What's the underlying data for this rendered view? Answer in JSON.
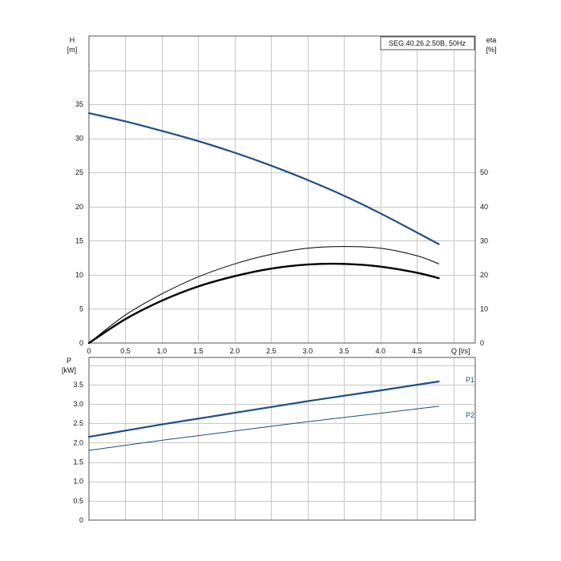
{
  "colors": {
    "head": "#1f4e86",
    "efficiency": "#000000",
    "p1": "#1f4e86",
    "p2": "#1f4e86",
    "grid": "#c8c8c8",
    "frame": "#555555"
  },
  "chart_data": [
    {
      "type": "line",
      "title": "SEG.40.26.2.50B, 50Hz",
      "xlabel": "Q [l/s]",
      "ylabel_line1": "H",
      "ylabel_line2": "[m]",
      "y2label_line1": "eta",
      "y2label_line2": "[%]",
      "xlim": [
        0,
        5.3
      ],
      "ylim": [
        0,
        45
      ],
      "y2lim": [
        0,
        90
      ],
      "grid": true,
      "x_ticks": [
        "0",
        "0.5",
        "1.0",
        "1.5",
        "2.0",
        "2.5",
        "3.0",
        "3.5",
        "4.0",
        "4.5"
      ],
      "x_tick_values": [
        0,
        0.5,
        1.0,
        1.5,
        2.0,
        2.5,
        3.0,
        3.5,
        4.0,
        4.5
      ],
      "y_ticks": [
        "0",
        "5",
        "10",
        "15",
        "20",
        "25",
        "30",
        "35"
      ],
      "y_tick_values": [
        0,
        5,
        10,
        15,
        20,
        25,
        30,
        35
      ],
      "y2_ticks": [
        "0",
        "10",
        "20",
        "30",
        "40",
        "50"
      ],
      "y2_tick_values": [
        0,
        10,
        20,
        30,
        40,
        50
      ],
      "series": [
        {
          "key": "head",
          "axis": "left",
          "x": [
            0,
            0.5,
            1.0,
            1.5,
            2.0,
            2.5,
            3.0,
            3.5,
            4.0,
            4.5,
            4.8
          ],
          "values": [
            33.7,
            32.5,
            31.1,
            29.6,
            27.9,
            26.0,
            23.9,
            21.6,
            19.0,
            16.2,
            14.5
          ]
        },
        {
          "key": "eta_thin",
          "axis": "right",
          "x": [
            0,
            0.5,
            1.0,
            1.5,
            2.0,
            2.5,
            3.0,
            3.5,
            4.0,
            4.5,
            4.8
          ],
          "values": [
            0,
            8.2,
            14.4,
            19.4,
            23.2,
            26.0,
            27.8,
            28.3,
            27.8,
            25.6,
            23.2
          ]
        },
        {
          "key": "eta_thick",
          "axis": "right",
          "x": [
            0,
            0.5,
            1.0,
            1.5,
            2.0,
            2.5,
            3.0,
            3.5,
            4.0,
            4.5,
            4.8
          ],
          "values": [
            0,
            7.0,
            12.4,
            16.6,
            19.6,
            21.8,
            23.0,
            23.2,
            22.4,
            20.6,
            19.0
          ]
        }
      ]
    },
    {
      "type": "line",
      "ylabel_line1": "P",
      "ylabel_line2": "[kW]",
      "xlim": [
        0,
        5.3
      ],
      "ylim": [
        0,
        4.2
      ],
      "grid": true,
      "y_ticks": [
        "0",
        "0.5",
        "1.0",
        "1.5",
        "2.0",
        "2.5",
        "3.0",
        "3.5"
      ],
      "y_tick_values": [
        0,
        0.5,
        1.0,
        1.5,
        2.0,
        2.5,
        3.0,
        3.5
      ],
      "series": [
        {
          "key": "p1",
          "name": "P1",
          "x": [
            0,
            1,
            2,
            3,
            4,
            4.8
          ],
          "values": [
            2.15,
            2.47,
            2.77,
            3.07,
            3.35,
            3.58
          ]
        },
        {
          "key": "p2",
          "name": "P2",
          "x": [
            0,
            1,
            2,
            3,
            4,
            4.8
          ],
          "values": [
            1.8,
            2.06,
            2.3,
            2.54,
            2.76,
            2.94
          ]
        }
      ]
    }
  ]
}
